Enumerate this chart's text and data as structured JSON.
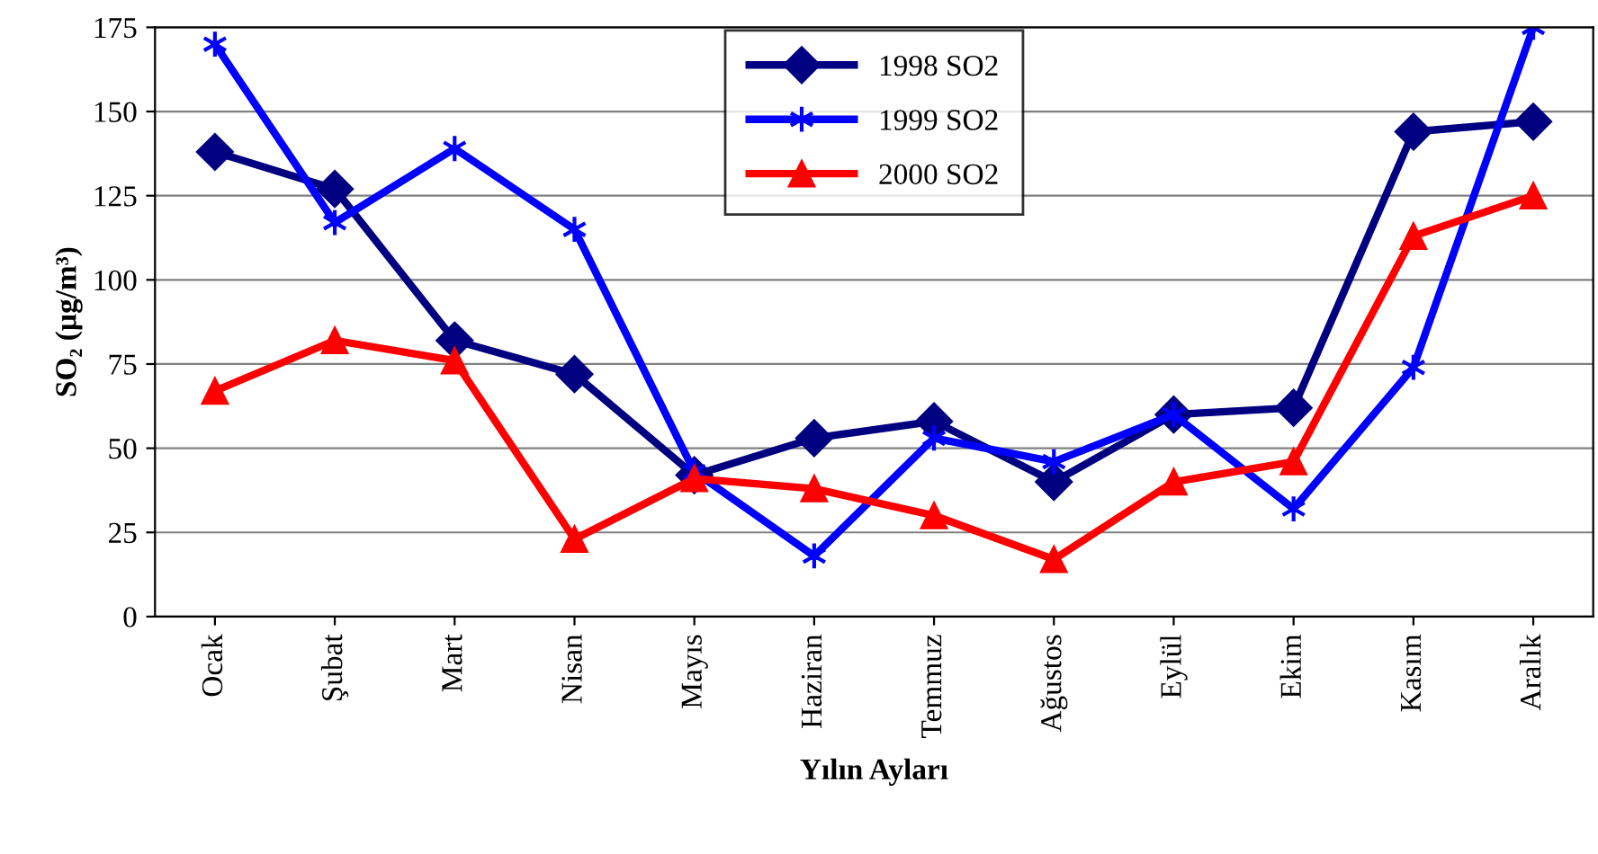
{
  "chart_data": {
    "type": "line",
    "xlabel": "Yılın Ayları",
    "ylabel": "SO₂ (µg/m³)",
    "categories": [
      "Ocak",
      "Şubat",
      "Mart",
      "Nisan",
      "Mayıs",
      "Haziran",
      "Temmuz",
      "Ağustos",
      "Eylül",
      "Ekim",
      "Kasım",
      "Aralık"
    ],
    "series": [
      {
        "name": "1998 SO2",
        "color": "#000080",
        "marker": "diamond",
        "values": [
          138,
          127,
          82,
          72,
          42,
          53,
          58,
          40,
          60,
          62,
          144,
          147
        ]
      },
      {
        "name": "1999 SO2",
        "color": "#0000ff",
        "marker": "cross",
        "values": [
          170,
          117,
          139,
          115,
          43,
          18,
          53,
          46,
          60,
          32,
          74,
          175
        ]
      },
      {
        "name": "2000 SO2",
        "color": "#ff0000",
        "marker": "triangle",
        "values": [
          67,
          82,
          76,
          23,
          41,
          38,
          30,
          17,
          40,
          46,
          113,
          125
        ]
      }
    ],
    "ylim": [
      0,
      175
    ],
    "yticks": [
      0,
      25,
      50,
      75,
      100,
      125,
      150,
      175
    ],
    "grid": "y",
    "legend": "top",
    "line_style": "solid"
  }
}
